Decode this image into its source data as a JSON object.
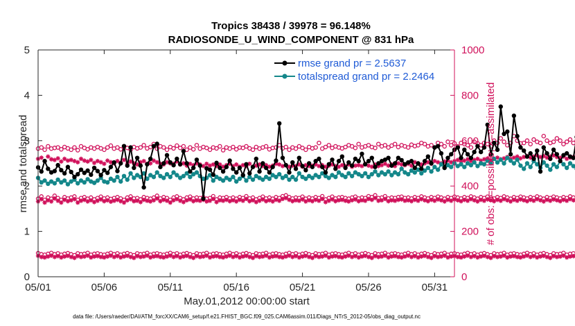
{
  "chart_data": {
    "type": "line",
    "title_line1": "Tropics 38438 / 39978 = 96.148%",
    "title_line2": "RADIOSONDE_U_WIND_COMPONENT @ 831 hPa",
    "xlabel": "May.01,2012 00:00:00 start",
    "ylabel_left": "rmse and totalspread",
    "ylabel_right": "# of obs: o=possible; ×=assimilated",
    "x_ticks": [
      "05/01",
      "05/06",
      "05/11",
      "05/16",
      "05/21",
      "05/26",
      "05/31"
    ],
    "x_tick_days": [
      1,
      6,
      11,
      16,
      21,
      26,
      31
    ],
    "xlim": [
      1,
      32.5
    ],
    "ylim_left": [
      0,
      5
    ],
    "y_ticks_left": [
      "0",
      "1",
      "2",
      "3",
      "4",
      "5"
    ],
    "ylim_right": [
      0,
      1000
    ],
    "y_ticks_right": [
      "0",
      "200",
      "400",
      "600",
      "800",
      "1000"
    ],
    "legend": [
      "rmse grand pr = 2.5637",
      "totalspread grand pr = 2.2464"
    ],
    "colors": {
      "rmse": "#000000",
      "spread": "#14878a",
      "obs": "#d0105a"
    },
    "x_start_day": 1.0,
    "x_step_days": 0.25,
    "rmse": [
      2.41,
      2.32,
      2.55,
      2.38,
      2.3,
      2.33,
      2.46,
      2.35,
      2.28,
      2.42,
      2.31,
      2.2,
      2.26,
      2.36,
      2.29,
      2.34,
      2.25,
      2.4,
      2.33,
      2.24,
      2.35,
      2.29,
      2.42,
      2.52,
      2.33,
      2.5,
      2.88,
      2.45,
      2.85,
      2.4,
      2.62,
      2.45,
      1.97,
      2.48,
      2.6,
      2.88,
      2.93,
      2.42,
      2.5,
      2.68,
      2.52,
      2.46,
      2.6,
      2.48,
      2.77,
      2.5,
      2.32,
      2.4,
      2.58,
      2.45,
      1.72,
      2.39,
      2.36,
      2.25,
      2.51,
      2.4,
      2.32,
      2.42,
      2.56,
      2.38,
      2.3,
      2.4,
      2.24,
      2.48,
      2.28,
      2.42,
      2.6,
      2.32,
      2.5,
      2.4,
      2.3,
      2.42,
      2.56,
      3.38,
      2.62,
      2.46,
      2.3,
      2.52,
      2.38,
      2.62,
      2.44,
      2.35,
      2.5,
      2.42,
      2.55,
      2.6,
      2.42,
      2.3,
      2.48,
      2.58,
      2.38,
      2.55,
      2.65,
      2.4,
      2.52,
      2.45,
      2.6,
      2.55,
      2.71,
      2.48,
      2.55,
      2.62,
      2.42,
      2.5,
      2.55,
      2.58,
      2.62,
      2.45,
      2.5,
      2.62,
      2.57,
      2.48,
      2.52,
      2.55,
      2.4,
      2.5,
      2.38,
      2.55,
      2.65,
      2.5,
      2.85,
      2.88,
      2.72,
      2.4,
      2.62,
      2.7,
      2.8,
      2.85,
      2.62,
      2.8,
      2.7,
      2.62,
      2.75,
      2.88,
      2.75,
      2.85,
      3.35,
      2.7,
      2.95,
      2.8,
      3.75,
      3.15,
      3.2,
      2.7,
      3.55,
      3.1,
      2.85,
      2.78,
      2.65,
      2.72,
      2.6,
      2.78,
      2.32,
      2.85,
      2.72,
      2.6,
      2.8,
      2.7,
      2.55,
      2.68,
      2.72,
      2.65,
      2.62,
      3.08,
      2.72,
      2.95,
      2.78,
      2.72,
      2.68
    ],
    "spread": [
      2.18,
      2.08,
      2.12,
      2.05,
      2.1,
      2.06,
      2.14,
      2.08,
      2.12,
      2.04,
      2.1,
      2.14,
      2.06,
      2.12,
      2.08,
      2.15,
      2.1,
      2.07,
      2.12,
      2.18,
      2.1,
      2.08,
      2.16,
      2.12,
      2.2,
      2.1,
      2.22,
      2.14,
      2.28,
      2.18,
      2.24,
      2.2,
      2.28,
      2.16,
      2.24,
      2.2,
      2.3,
      2.22,
      2.18,
      2.26,
      2.2,
      2.3,
      2.24,
      2.18,
      2.22,
      2.28,
      2.2,
      2.26,
      2.3,
      2.22,
      2.16,
      2.18,
      2.24,
      2.12,
      2.2,
      2.16,
      2.12,
      2.18,
      2.14,
      2.2,
      2.1,
      2.16,
      2.22,
      2.12,
      2.2,
      2.14,
      2.22,
      2.18,
      2.14,
      2.2,
      2.16,
      2.24,
      2.2,
      2.26,
      2.18,
      2.22,
      2.14,
      2.2,
      2.14,
      2.28,
      2.2,
      2.16,
      2.22,
      2.18,
      2.24,
      2.2,
      2.28,
      2.22,
      2.18,
      2.24,
      2.2,
      2.3,
      2.24,
      2.2,
      2.28,
      2.22,
      2.3,
      2.26,
      2.22,
      2.28,
      2.2,
      2.26,
      2.32,
      2.24,
      2.3,
      2.26,
      2.32,
      2.24,
      2.3,
      2.26,
      2.38,
      2.3,
      2.26,
      2.34,
      2.3,
      2.36,
      2.28,
      2.34,
      2.4,
      2.32,
      2.42,
      2.36,
      2.48,
      2.4,
      2.46,
      2.42,
      2.5,
      2.44,
      2.48,
      2.42,
      2.5,
      2.46,
      2.52,
      2.44,
      2.5,
      2.48,
      2.56,
      2.5,
      2.6,
      2.52,
      2.58,
      2.5,
      2.62,
      2.56,
      2.5,
      2.58,
      2.45,
      2.38,
      2.5,
      2.42,
      2.55,
      2.48,
      2.4,
      2.52,
      2.45,
      2.36,
      2.48,
      2.42,
      2.55,
      2.48,
      2.4,
      2.5,
      2.44,
      2.38,
      2.5,
      2.46,
      2.42,
      2.36,
      2.32,
      2.4
    ],
    "obs_possible_major": [
      565,
      570,
      560,
      575,
      565,
      568,
      570,
      562,
      572,
      566,
      560,
      570,
      558,
      575,
      568,
      562,
      570,
      565,
      572,
      566,
      560,
      570,
      578,
      565,
      570,
      562,
      575,
      568,
      560,
      572,
      566,
      570,
      580,
      566,
      572,
      585,
      565,
      575,
      570,
      560,
      572,
      566,
      578,
      568,
      575,
      560,
      570,
      562,
      580,
      565,
      572,
      568,
      560,
      570,
      566,
      575,
      558,
      570,
      565,
      572,
      562,
      570,
      568,
      575,
      566,
      560,
      572,
      565,
      570,
      575,
      562,
      568,
      570,
      580,
      566,
      572,
      560,
      570,
      565,
      575,
      568,
      560,
      572,
      566,
      570,
      590,
      565,
      572,
      580,
      568,
      575,
      570,
      566,
      572,
      580,
      575,
      568,
      585,
      570,
      575,
      580,
      572,
      568,
      585,
      575,
      580,
      570,
      578,
      585,
      572,
      580,
      575,
      570,
      582,
      576,
      580,
      590,
      585,
      575,
      580,
      570,
      590,
      585,
      575,
      595,
      580,
      588,
      575,
      590,
      585,
      580,
      570,
      595,
      588,
      580,
      590,
      585,
      575,
      600,
      590,
      610,
      595,
      580,
      590,
      620,
      600,
      588,
      590,
      600,
      585,
      605,
      595,
      590,
      620,
      600,
      590,
      595,
      610,
      600,
      585,
      595,
      605,
      590,
      600,
      610,
      595,
      600,
      590,
      600,
      595
    ],
    "obs_assim_major": [
      520,
      525,
      510,
      530,
      518,
      515,
      522,
      508,
      520,
      512,
      515,
      510,
      505,
      520,
      512,
      508,
      515,
      502,
      510,
      505,
      498,
      512,
      505,
      500,
      510,
      502,
      515,
      498,
      508,
      500,
      495,
      505,
      510,
      498,
      500,
      512,
      505,
      498,
      495,
      505,
      500,
      498,
      508,
      495,
      500,
      490,
      498,
      492,
      500,
      495,
      488,
      498,
      490,
      495,
      488,
      495,
      485,
      492,
      498,
      488,
      495,
      485,
      492,
      488,
      498,
      485,
      490,
      495,
      488,
      492,
      485,
      490,
      498,
      495,
      488,
      492,
      485,
      490,
      488,
      495,
      485,
      492,
      488,
      490,
      495,
      488,
      492,
      485,
      490,
      495,
      488,
      485,
      492,
      488,
      495,
      485,
      490,
      492,
      488,
      498,
      490,
      485,
      495,
      488,
      492,
      498,
      490,
      495,
      488,
      500,
      495,
      492,
      498,
      490,
      505,
      498,
      495,
      500,
      505,
      498,
      510,
      505,
      500,
      508,
      512,
      505,
      510,
      515,
      508,
      512,
      518,
      510,
      515,
      520,
      512,
      518,
      522,
      515,
      520,
      525,
      518,
      522,
      528,
      520,
      525,
      530,
      522,
      528,
      532,
      525,
      530,
      535,
      528,
      532,
      525,
      530,
      535,
      528,
      525,
      530,
      520,
      525,
      528,
      522,
      518,
      525,
      520,
      515,
      510,
      505
    ],
    "obs_minor_high": [
      335,
      345,
      330,
      340,
      335,
      348,
      338,
      330,
      342,
      336,
      340,
      345,
      330,
      338,
      342,
      335,
      340,
      332,
      338,
      344,
      336,
      340,
      334,
      338,
      342,
      336,
      330,
      340,
      345,
      336,
      338,
      332,
      342,
      338,
      335,
      340,
      348,
      336,
      342,
      338,
      330,
      340,
      345,
      338,
      332,
      340,
      344,
      336,
      340,
      338,
      342,
      335,
      338,
      346,
      332,
      340,
      338,
      342,
      336,
      340,
      335,
      342,
      338,
      346,
      336,
      340,
      332,
      338,
      344,
      336,
      340,
      335,
      342,
      338,
      346,
      350,
      342,
      336,
      340,
      338,
      344,
      335,
      340,
      336,
      342,
      338,
      346,
      332,
      338,
      344,
      336,
      340,
      342,
      338,
      335,
      340,
      344,
      336,
      340,
      338,
      346,
      342,
      350,
      338,
      340,
      346,
      336,
      340,
      338,
      342,
      344,
      338,
      340,
      336,
      342,
      338,
      345,
      340,
      336,
      342,
      338,
      344,
      340,
      335,
      342,
      338,
      344,
      340,
      336,
      342,
      338,
      345,
      340,
      335,
      342,
      338,
      344,
      340,
      336,
      342,
      338,
      345,
      340,
      335,
      342,
      338,
      344,
      340,
      336,
      342,
      338,
      345,
      340,
      335,
      342,
      338,
      344,
      340,
      336,
      342,
      338,
      345,
      340,
      335,
      342,
      338,
      344,
      340,
      336,
      342
    ],
    "obs_minor_low": [
      95,
      90,
      88,
      92,
      96,
      90,
      94,
      88,
      92,
      95,
      90,
      86,
      94,
      90,
      92,
      96,
      88,
      92,
      94,
      90,
      88,
      92,
      96,
      90,
      94,
      88,
      92,
      95,
      90,
      86,
      94,
      90,
      92,
      96,
      88,
      92,
      94,
      90,
      88,
      92,
      96,
      90,
      94,
      88,
      92,
      95,
      90,
      86,
      94,
      90,
      92,
      96,
      88,
      92,
      94,
      90,
      88,
      92,
      96,
      90,
      94,
      88,
      92,
      95,
      90,
      86,
      94,
      90,
      92,
      96,
      88,
      92,
      94,
      90,
      88,
      92,
      96,
      90,
      94,
      88,
      92,
      95,
      90,
      86,
      94,
      90,
      92,
      96,
      88,
      92,
      94,
      90,
      88,
      92,
      96,
      90,
      94,
      88,
      92,
      95,
      90,
      86,
      94,
      90,
      92,
      96,
      88,
      92,
      94,
      90,
      88,
      92,
      96,
      90,
      94,
      88,
      92,
      95,
      90,
      86,
      94,
      90,
      92,
      96,
      88,
      92,
      94,
      90,
      88,
      92,
      96,
      90,
      94,
      88,
      92,
      95,
      90,
      86,
      94,
      90,
      92,
      96,
      88,
      92,
      94,
      90,
      88,
      92,
      96,
      90,
      94,
      88,
      92,
      95,
      90,
      86,
      94,
      90,
      92,
      96,
      88,
      92,
      94,
      90,
      88,
      92,
      96,
      90,
      94,
      60
    ]
  },
  "footer": "data file: /Users/raeder/DAI/ATM_forcXX/CAM6_setup/f.e21.FHIST_BGC.f09_025.CAM6assim.011/Diags_NTrS_2012-05/obs_diag_output.nc"
}
